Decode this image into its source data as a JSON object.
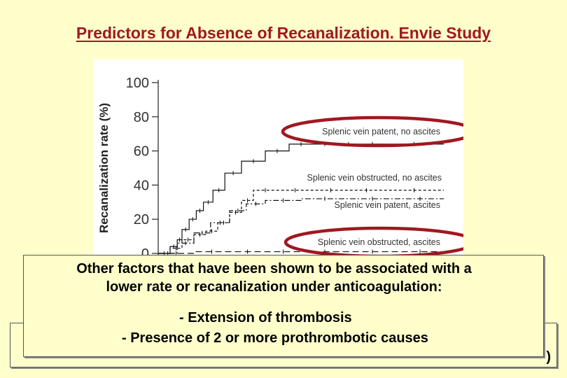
{
  "slide": {
    "title": "Predictors for Absence of Recanalization. Envie Study"
  },
  "overlay": {
    "line1": "Other factors that have been shown to be associated with a",
    "line2": "lower rate or recanalization under anticoagulation:",
    "bullet1": "- Extension of thrombosis",
    "bullet2": "- Presence of 2 or more prothrombotic causes"
  },
  "bottom_box": {
    "visible_fragment": ")"
  },
  "colors": {
    "background": "#ffffcc",
    "title": "#a01820",
    "highlight_ellipse": "#a01820",
    "chart_line": "#000000",
    "series_label": "#333333"
  },
  "chart_data": {
    "type": "line",
    "title": "",
    "xlabel": "",
    "ylabel": "Recanalization rate (%)",
    "ylim": [
      0,
      100
    ],
    "yticks": [
      0,
      20,
      40,
      60,
      80,
      100
    ],
    "xlim": [
      0,
      12
    ],
    "grid": false,
    "series": [
      {
        "name": "Splenic vein patent, no ascites",
        "style": "solid",
        "highlighted": true,
        "x": [
          0,
          0.5,
          0.8,
          1.0,
          1.3,
          1.6,
          1.9,
          2.3,
          2.8,
          3.5,
          4.5,
          5.5,
          6.5,
          7.5,
          8.5,
          9.5,
          12
        ],
        "y": [
          0,
          4,
          8,
          14,
          20,
          25,
          30,
          37,
          47,
          54,
          60,
          64,
          64,
          64,
          64,
          64,
          64
        ]
      },
      {
        "name": "Splenic vein obstructed, no ascites",
        "style": "dashed",
        "highlighted": false,
        "x": [
          0,
          0.5,
          1.0,
          1.5,
          2.0,
          2.5,
          3.0,
          3.5,
          4.0,
          5.0,
          6.5,
          8.0,
          9.5,
          12
        ],
        "y": [
          0,
          3,
          8,
          11,
          13,
          18,
          24,
          31,
          37,
          37,
          37,
          37,
          37,
          37
        ]
      },
      {
        "name": "Splenic vein patent, ascites",
        "style": "dash-dot",
        "highlighted": false,
        "x": [
          0,
          0.8,
          1.5,
          2.2,
          3.0,
          3.7,
          4.5,
          6.0,
          8.0,
          10.0,
          12
        ],
        "y": [
          0,
          6,
          12,
          18,
          25,
          29,
          31,
          32,
          32,
          32,
          32
        ]
      },
      {
        "name": "Splenic vein obstructed, ascites",
        "style": "long-dash",
        "highlighted": true,
        "x": [
          0,
          1.5,
          3.0,
          4.5,
          6.0,
          8.0,
          10.0,
          12
        ],
        "y": [
          0,
          1,
          1,
          1,
          1,
          1,
          1,
          1
        ]
      }
    ]
  }
}
